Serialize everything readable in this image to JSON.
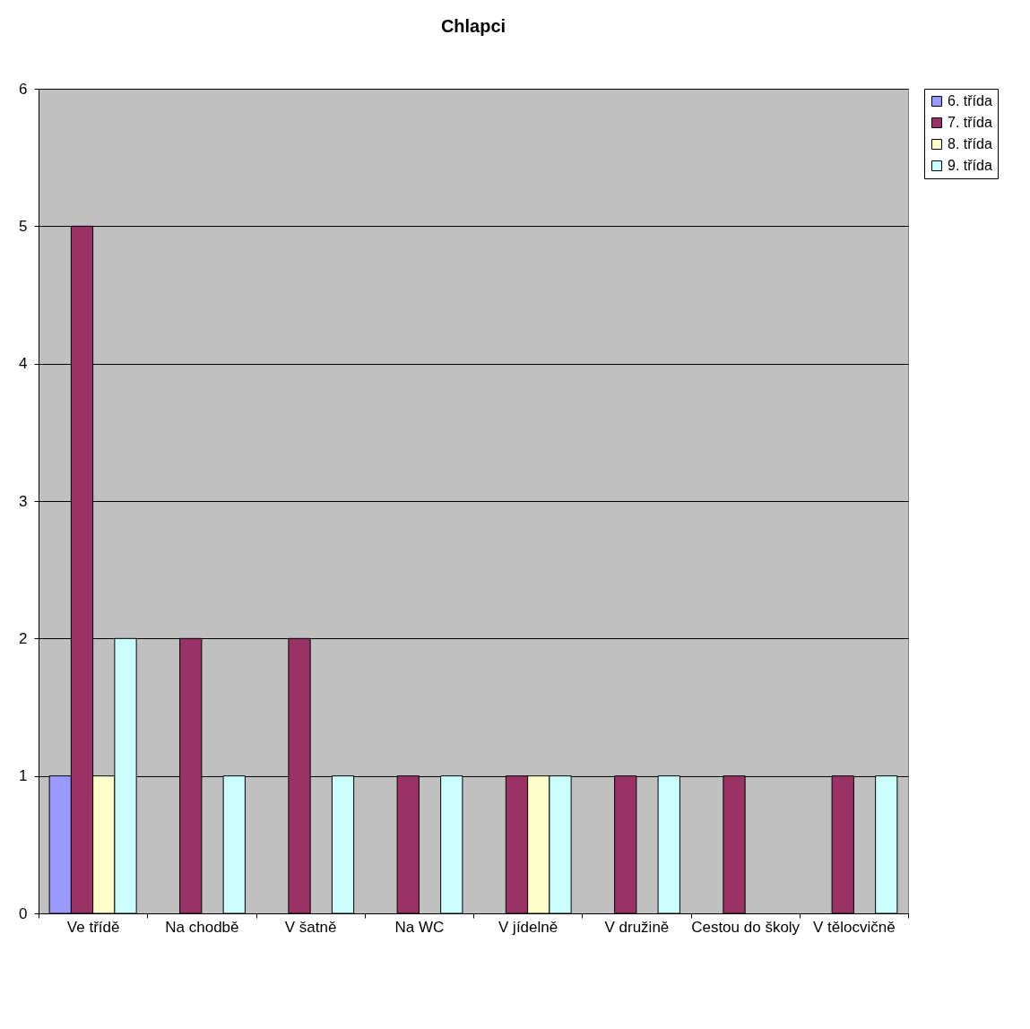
{
  "chart_data": {
    "type": "bar",
    "title": "Chlapci",
    "categories": [
      "Ve třídě",
      "Na chodbě",
      "V šatně",
      "Na WC",
      "V jídelně",
      "V družině",
      "Cestou do školy",
      "V tělocvičně"
    ],
    "series": [
      {
        "name": "6. třída",
        "color": "#9999ff",
        "values": [
          1,
          0,
          0,
          0,
          0,
          0,
          0,
          0
        ]
      },
      {
        "name": "7. třída",
        "color": "#993366",
        "values": [
          5,
          2,
          2,
          1,
          1,
          1,
          1,
          1
        ]
      },
      {
        "name": "8. třída",
        "color": "#ffffcc",
        "values": [
          1,
          0,
          0,
          0,
          1,
          0,
          0,
          0
        ]
      },
      {
        "name": "9. třída",
        "color": "#ccffff",
        "values": [
          2,
          1,
          1,
          1,
          1,
          1,
          0,
          1
        ]
      }
    ],
    "ylim": [
      0,
      6
    ],
    "yticks": [
      0,
      1,
      2,
      3,
      4,
      5,
      6
    ],
    "grid": "y",
    "legend": "right"
  }
}
